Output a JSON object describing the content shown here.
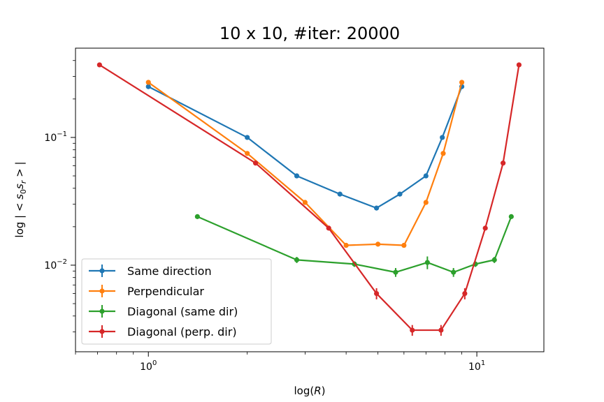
{
  "chart_data": {
    "type": "line",
    "title": "10 x 10, #iter: 20000",
    "xlabel": "log(R)",
    "ylabel": "log | < s0 sr > |",
    "xscale": "log",
    "yscale": "log",
    "xlim": [
      0.6,
      16
    ],
    "ylim": [
      0.0021,
      0.5
    ],
    "x_major_ticks": [
      {
        "value": 1,
        "label": "10^0"
      },
      {
        "value": 10,
        "label": "10^1"
      }
    ],
    "y_major_ticks": [
      {
        "value": 0.01,
        "label": "10^-2"
      },
      {
        "value": 0.1,
        "label": "10^-1"
      }
    ],
    "grid": false,
    "legend_position": "lower-left",
    "series": [
      {
        "name": "Same direction",
        "color": "#1f77b4",
        "x": [
          1.0,
          2.0,
          2.83,
          3.83,
          4.95,
          5.83,
          7.0,
          7.85,
          9.0
        ],
        "y": [
          0.25,
          0.1,
          0.05,
          0.036,
          0.028,
          0.036,
          0.05,
          0.1,
          0.25
        ],
        "err": [
          0.0,
          0.0,
          0.0,
          0.0,
          0.0,
          0.0,
          0.0,
          0.0,
          0.0
        ]
      },
      {
        "name": "Perpendicular",
        "color": "#ff7f0e",
        "x": [
          1.0,
          2.0,
          3.0,
          4.0,
          5.0,
          6.0,
          7.0,
          7.9,
          9.0
        ],
        "y": [
          0.27,
          0.075,
          0.031,
          0.0143,
          0.0146,
          0.0143,
          0.031,
          0.075,
          0.27
        ],
        "err": [
          0.0,
          0.0,
          0.0,
          0.0003,
          0.0004,
          0.0003,
          0.0,
          0.0,
          0.0
        ]
      },
      {
        "name": "Diagonal (same dir)",
        "color": "#2ca02c",
        "x": [
          1.41,
          2.83,
          4.24,
          5.66,
          7.07,
          8.49,
          9.9,
          11.31,
          12.73
        ],
        "y": [
          0.024,
          0.011,
          0.0102,
          0.0088,
          0.0105,
          0.0088,
          0.0102,
          0.011,
          0.024
        ],
        "err": [
          0.0,
          0.0006,
          0.0005,
          0.0007,
          0.0012,
          0.0007,
          0.0005,
          0.0006,
          0.0
        ]
      },
      {
        "name": "Diagonal (perp. dir)",
        "color": "#d62728",
        "x": [
          0.71,
          2.12,
          3.54,
          4.95,
          6.36,
          7.78,
          9.19,
          10.61,
          12.02,
          13.44
        ],
        "y": [
          0.37,
          0.063,
          0.0195,
          0.006,
          0.0031,
          0.0031,
          0.006,
          0.0195,
          0.063,
          0.37
        ],
        "err": [
          0.0,
          0.0,
          0.0,
          0.0006,
          0.0003,
          0.0003,
          0.0006,
          0.0,
          0.0,
          0.0
        ]
      }
    ]
  }
}
